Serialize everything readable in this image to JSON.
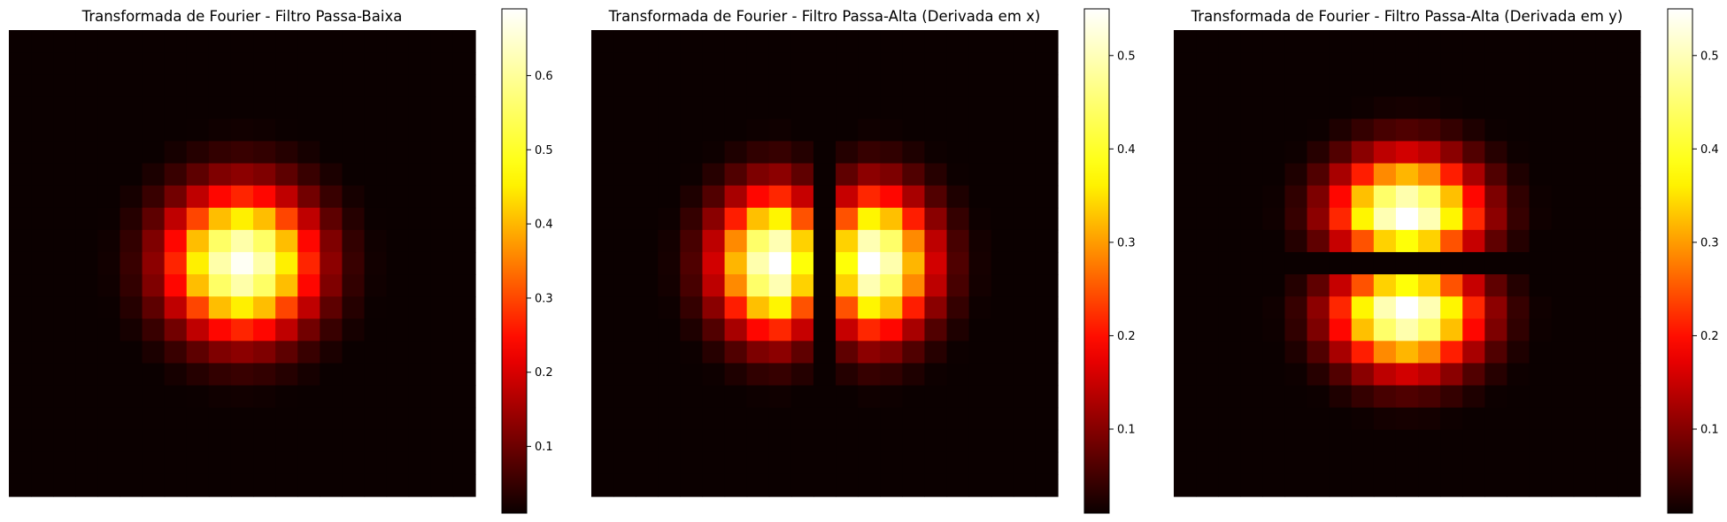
{
  "colormap": {
    "name": "hot",
    "stops": [
      "#0b0000",
      "#ff0000",
      "#ffff00",
      "#ffffff"
    ]
  },
  "chart_data": [
    {
      "type": "heatmap",
      "title": "Transformada de Fourier - Filtro Passa-Baixa",
      "grid_size": 21,
      "kernel": "gaussian",
      "peak": 0.68,
      "colorbar": {
        "min": 0.01,
        "max": 0.69,
        "ticks": [
          "0.1",
          "0.2",
          "0.3",
          "0.4",
          "0.5",
          "0.6"
        ]
      },
      "axis_visible": false
    },
    {
      "type": "heatmap",
      "title": "Transformada de Fourier - Filtro Passa-Alta (Derivada em x)",
      "grid_size": 21,
      "kernel": "gaussian-derivative-x",
      "peak": 0.55,
      "colorbar": {
        "min": 0.01,
        "max": 0.55,
        "ticks": [
          "0.1",
          "0.2",
          "0.3",
          "0.4",
          "0.5"
        ]
      },
      "axis_visible": false
    },
    {
      "type": "heatmap",
      "title": "Transformada de Fourier - Filtro Passa-Alta (Derivada em y)",
      "grid_size": 21,
      "kernel": "gaussian-derivative-y",
      "peak": 0.55,
      "colorbar": {
        "min": 0.01,
        "max": 0.55,
        "ticks": [
          "0.1",
          "0.2",
          "0.3",
          "0.4",
          "0.5"
        ]
      },
      "axis_visible": false
    }
  ]
}
